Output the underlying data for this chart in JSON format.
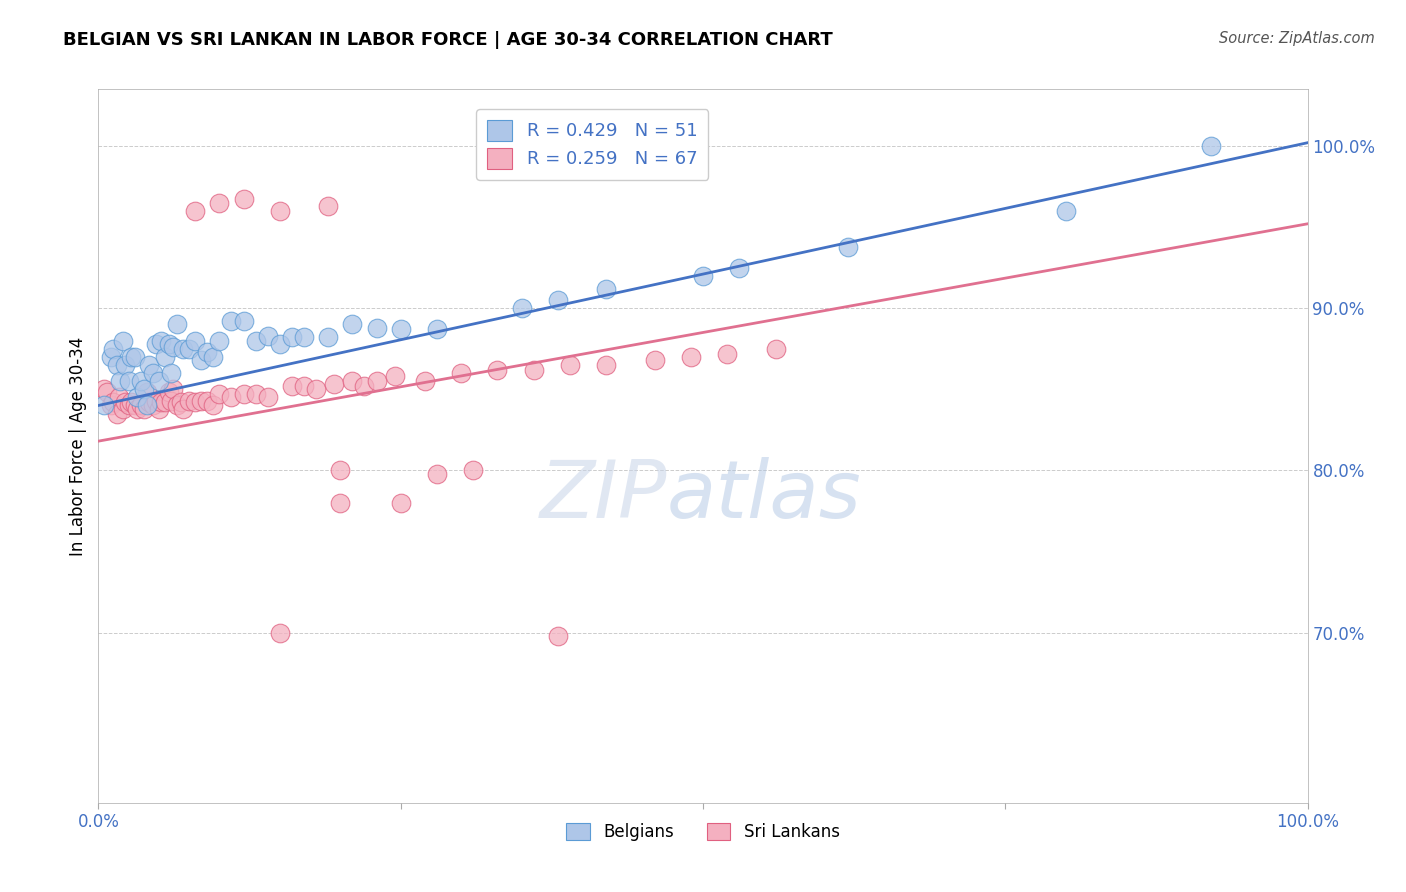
{
  "title": "BELGIAN VS SRI LANKAN IN LABOR FORCE | AGE 30-34 CORRELATION CHART",
  "source": "Source: ZipAtlas.com",
  "ylabel": "In Labor Force | Age 30-34",
  "xlim": [
    0.0,
    1.0
  ],
  "ylim": [
    0.595,
    1.035
  ],
  "ytick_positions": [
    0.7,
    0.8,
    0.9,
    1.0
  ],
  "ytick_labels": [
    "70.0%",
    "80.0%",
    "90.0%",
    "100.0%"
  ],
  "belgian_fill": "#aec6e8",
  "belgian_edge": "#5b9bd5",
  "sri_fill": "#f4b0c0",
  "sri_edge": "#e06080",
  "blue_line_color": "#4472c4",
  "pink_line_color": "#e07090",
  "tick_label_color": "#4472c4",
  "R_belgian": 0.429,
  "N_belgian": 51,
  "R_sri_lankan": 0.259,
  "N_sri_lankan": 67,
  "grid_color": "#cccccc",
  "blue_line_y0": 0.84,
  "blue_line_y1": 1.002,
  "pink_line_y0": 0.818,
  "pink_line_y1": 0.952,
  "belgian_x": [
    0.005,
    0.01,
    0.012,
    0.015,
    0.018,
    0.02,
    0.022,
    0.025,
    0.027,
    0.03,
    0.032,
    0.035,
    0.038,
    0.04,
    0.042,
    0.045,
    0.048,
    0.05,
    0.052,
    0.055,
    0.058,
    0.06,
    0.062,
    0.065,
    0.07,
    0.075,
    0.08,
    0.085,
    0.09,
    0.095,
    0.1,
    0.11,
    0.12,
    0.13,
    0.14,
    0.15,
    0.16,
    0.17,
    0.19,
    0.21,
    0.23,
    0.25,
    0.28,
    0.35,
    0.38,
    0.42,
    0.5,
    0.53,
    0.62,
    0.8,
    0.92
  ],
  "belgian_y": [
    0.84,
    0.87,
    0.875,
    0.865,
    0.855,
    0.88,
    0.865,
    0.855,
    0.87,
    0.87,
    0.845,
    0.855,
    0.85,
    0.84,
    0.865,
    0.86,
    0.878,
    0.855,
    0.88,
    0.87,
    0.878,
    0.86,
    0.876,
    0.89,
    0.875,
    0.875,
    0.88,
    0.868,
    0.873,
    0.87,
    0.88,
    0.892,
    0.892,
    0.88,
    0.883,
    0.878,
    0.882,
    0.882,
    0.882,
    0.89,
    0.888,
    0.887,
    0.887,
    0.9,
    0.905,
    0.912,
    0.92,
    0.925,
    0.938,
    0.96,
    1.0
  ],
  "sri_x": [
    0.005,
    0.007,
    0.01,
    0.012,
    0.015,
    0.017,
    0.02,
    0.022,
    0.025,
    0.027,
    0.03,
    0.032,
    0.035,
    0.038,
    0.04,
    0.042,
    0.045,
    0.048,
    0.05,
    0.052,
    0.055,
    0.058,
    0.06,
    0.062,
    0.065,
    0.068,
    0.07,
    0.075,
    0.08,
    0.085,
    0.09,
    0.095,
    0.1,
    0.11,
    0.12,
    0.13,
    0.14,
    0.16,
    0.17,
    0.18,
    0.195,
    0.21,
    0.22,
    0.23,
    0.245,
    0.27,
    0.3,
    0.33,
    0.36,
    0.39,
    0.42,
    0.46,
    0.49,
    0.52,
    0.56,
    0.15,
    0.19,
    0.08,
    0.1,
    0.12,
    0.2,
    0.28,
    0.31,
    0.2,
    0.25,
    0.15,
    0.38
  ],
  "sri_y": [
    0.85,
    0.848,
    0.84,
    0.842,
    0.835,
    0.845,
    0.838,
    0.842,
    0.84,
    0.842,
    0.84,
    0.838,
    0.84,
    0.838,
    0.848,
    0.842,
    0.84,
    0.843,
    0.838,
    0.842,
    0.842,
    0.848,
    0.843,
    0.85,
    0.84,
    0.842,
    0.838,
    0.843,
    0.842,
    0.843,
    0.843,
    0.84,
    0.847,
    0.845,
    0.847,
    0.847,
    0.845,
    0.852,
    0.852,
    0.85,
    0.853,
    0.855,
    0.852,
    0.855,
    0.858,
    0.855,
    0.86,
    0.862,
    0.862,
    0.865,
    0.865,
    0.868,
    0.87,
    0.872,
    0.875,
    0.96,
    0.963,
    0.96,
    0.965,
    0.967,
    0.8,
    0.798,
    0.8,
    0.78,
    0.78,
    0.7,
    0.698
  ]
}
